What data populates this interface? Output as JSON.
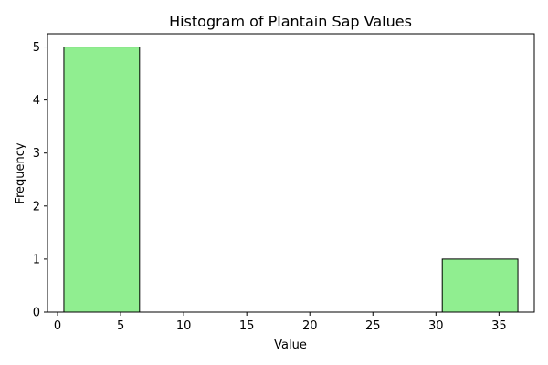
{
  "chart_data": {
    "type": "bar",
    "subtype": "histogram",
    "title": "Histogram of Plantain Sap Values",
    "xlabel": "Value",
    "ylabel": "Frequency",
    "bins": [
      {
        "start": 0.5,
        "end": 6.5,
        "count": 5
      },
      {
        "start": 6.5,
        "end": 12.5,
        "count": 0
      },
      {
        "start": 12.5,
        "end": 18.5,
        "count": 0
      },
      {
        "start": 18.5,
        "end": 24.5,
        "count": 0
      },
      {
        "start": 24.5,
        "end": 30.5,
        "count": 0
      },
      {
        "start": 30.5,
        "end": 36.5,
        "count": 1
      }
    ],
    "xlim": [
      -0.8,
      37.8
    ],
    "ylim": [
      0,
      5.25
    ],
    "xticks": [
      0,
      5,
      10,
      15,
      20,
      25,
      30,
      35
    ],
    "yticks": [
      0,
      1,
      2,
      3,
      4,
      5
    ],
    "grid": false,
    "legend": "none",
    "bar_color": "#90ee90",
    "edge_color": "#000000"
  }
}
